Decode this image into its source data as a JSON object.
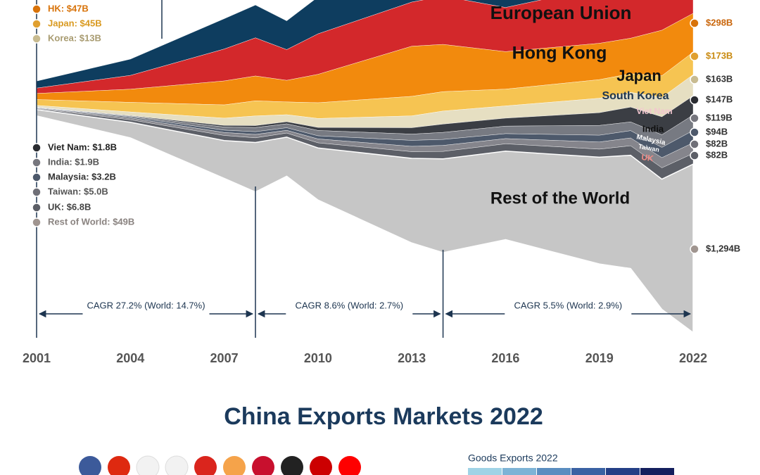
{
  "chart_data": {
    "type": "streamgraph",
    "x": [
      2001,
      2004,
      2007,
      2008,
      2009,
      2010,
      2013,
      2014,
      2016,
      2019,
      2020,
      2021,
      2022
    ],
    "xlim": [
      2001,
      2022
    ],
    "xticks": [
      2001,
      2004,
      2007,
      2010,
      2013,
      2016,
      2019,
      2022
    ],
    "series": [
      {
        "color": "#0e3d5f",
        "values": [
          54,
          125,
          233,
          252,
          221,
          283,
          369,
          397,
          385,
          418,
          452,
          577,
          582
        ]
      },
      {
        "name": "European Union",
        "color": "#d3282b",
        "values": [
          41,
          106,
          245,
          293,
          236,
          311,
          339,
          371,
          339,
          429,
          391,
          518,
          562
        ]
      },
      {
        "name": "Hong Kong",
        "color": "#f28a0d",
        "values": [
          47,
          101,
          184,
          191,
          166,
          218,
          385,
          363,
          288,
          279,
          273,
          350,
          298
        ],
        "value_labels": [
          "HK: $47B",
          null,
          null,
          null,
          null,
          null,
          null,
          null,
          null,
          null,
          null,
          null,
          "$298B"
        ]
      },
      {
        "name": "Japan",
        "color": "#f6c452",
        "values": [
          45,
          74,
          102,
          116,
          98,
          121,
          150,
          149,
          129,
          143,
          143,
          166,
          173
        ],
        "value_labels": [
          "Japan: $45B",
          null,
          null,
          null,
          null,
          null,
          null,
          null,
          null,
          null,
          null,
          null,
          "$173B"
        ]
      },
      {
        "name": "South Korea",
        "color": "#e6dfc2",
        "values": [
          13,
          28,
          56,
          74,
          54,
          69,
          91,
          100,
          94,
          111,
          113,
          149,
          163
        ],
        "value_labels": [
          "Korea: $13B",
          null,
          null,
          null,
          null,
          null,
          null,
          null,
          null,
          null,
          null,
          null,
          "$163B"
        ]
      },
      {
        "name": "Viet Nam",
        "color": "#3b3e44",
        "values": [
          1.8,
          4,
          12,
          15,
          16,
          23,
          49,
          64,
          61,
          98,
          114,
          138,
          147
        ],
        "value_labels": [
          "Viet Nam: $1.8B",
          null,
          null,
          null,
          null,
          null,
          null,
          null,
          null,
          null,
          null,
          null,
          "$147B"
        ]
      },
      {
        "name": "India",
        "color": "#777a82",
        "values": [
          1.9,
          6,
          24,
          32,
          30,
          41,
          48,
          54,
          58,
          75,
          67,
          97,
          119
        ],
        "value_labels": [
          "India: $1.9B",
          null,
          null,
          null,
          null,
          null,
          null,
          null,
          null,
          null,
          null,
          null,
          "$119B"
        ]
      },
      {
        "name": "Malaysia",
        "color": "#4d596b",
        "values": [
          3.2,
          8,
          18,
          21,
          20,
          24,
          46,
          46,
          38,
          52,
          56,
          79,
          94
        ],
        "value_labels": [
          "Malaysia: $3.2B",
          null,
          null,
          null,
          null,
          null,
          null,
          null,
          null,
          null,
          null,
          null,
          "$94B"
        ]
      },
      {
        "name": "Taiwan",
        "color": "#85858c",
        "values": [
          5,
          14,
          23,
          26,
          21,
          30,
          41,
          46,
          40,
          55,
          60,
          78,
          82
        ],
        "value_labels": [
          "Taiwan: $5.0B",
          null,
          null,
          null,
          null,
          null,
          null,
          null,
          null,
          null,
          null,
          null,
          "$82B"
        ]
      },
      {
        "name": "UK",
        "color": "#5c5f67",
        "values": [
          6.8,
          19,
          39,
          36,
          31,
          39,
          51,
          57,
          56,
          62,
          73,
          87,
          82
        ],
        "value_labels": [
          "UK: $6.8B",
          null,
          null,
          null,
          null,
          null,
          null,
          null,
          null,
          null,
          null,
          null,
          "$82B"
        ]
      },
      {
        "name": "Rest of the World",
        "color": "#c6c6c6",
        "values": [
          49,
          120,
          290,
          380,
          300,
          400,
          650,
          720,
          680,
          820,
          870,
          1000,
          1294
        ],
        "value_labels": [
          "Rest of World: $49B",
          null,
          null,
          null,
          null,
          null,
          null,
          null,
          null,
          null,
          null,
          null,
          "$1,294B"
        ]
      }
    ],
    "annotations": [
      {
        "text": "CAGR 27.2% (World: 14.7%)",
        "from": 2001,
        "to": 2008
      },
      {
        "text": "CAGR 8.6% (World: 2.7%)",
        "from": 2008,
        "to": 2014
      },
      {
        "text": "CAGR 5.5% (World: 2.9%)",
        "from": 2014,
        "to": 2022
      }
    ]
  },
  "footer": {
    "title": "China Exports Markets 2022",
    "legend_title": "Goods Exports 2022"
  }
}
